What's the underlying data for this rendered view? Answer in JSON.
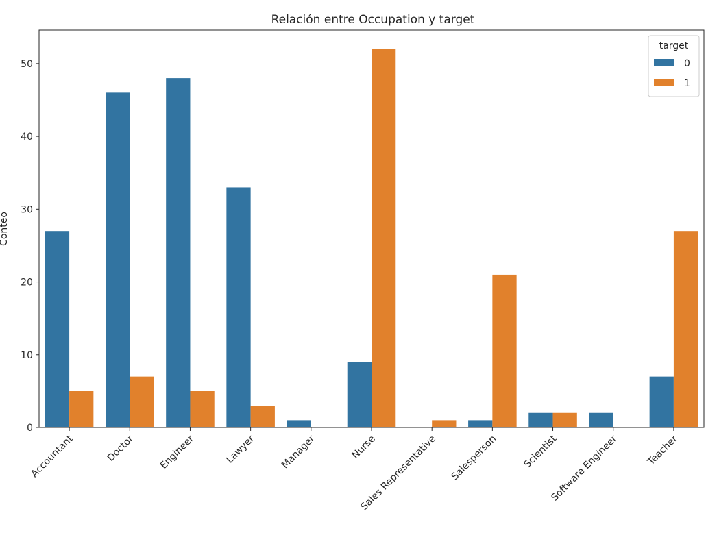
{
  "chart_data": {
    "type": "bar",
    "title": "Relación entre Occupation y target",
    "xlabel": "",
    "ylabel": "Conteo",
    "categories": [
      "Accountant",
      "Doctor",
      "Engineer",
      "Lawyer",
      "Manager",
      "Nurse",
      "Sales Representative",
      "Salesperson",
      "Scientist",
      "Software Engineer",
      "Teacher"
    ],
    "series": [
      {
        "name": "0",
        "color": "#3274a1",
        "values": [
          27,
          46,
          48,
          33,
          1,
          9,
          0,
          1,
          2,
          2,
          7
        ]
      },
      {
        "name": "1",
        "color": "#e1812c",
        "values": [
          5,
          7,
          5,
          3,
          0,
          52,
          1,
          21,
          2,
          0,
          27
        ]
      }
    ],
    "ylim": [
      0,
      54.6
    ],
    "yticks": [
      0,
      10,
      20,
      30,
      40,
      50
    ],
    "legend": {
      "title": "target",
      "placement": "top-right"
    },
    "grid": false
  }
}
